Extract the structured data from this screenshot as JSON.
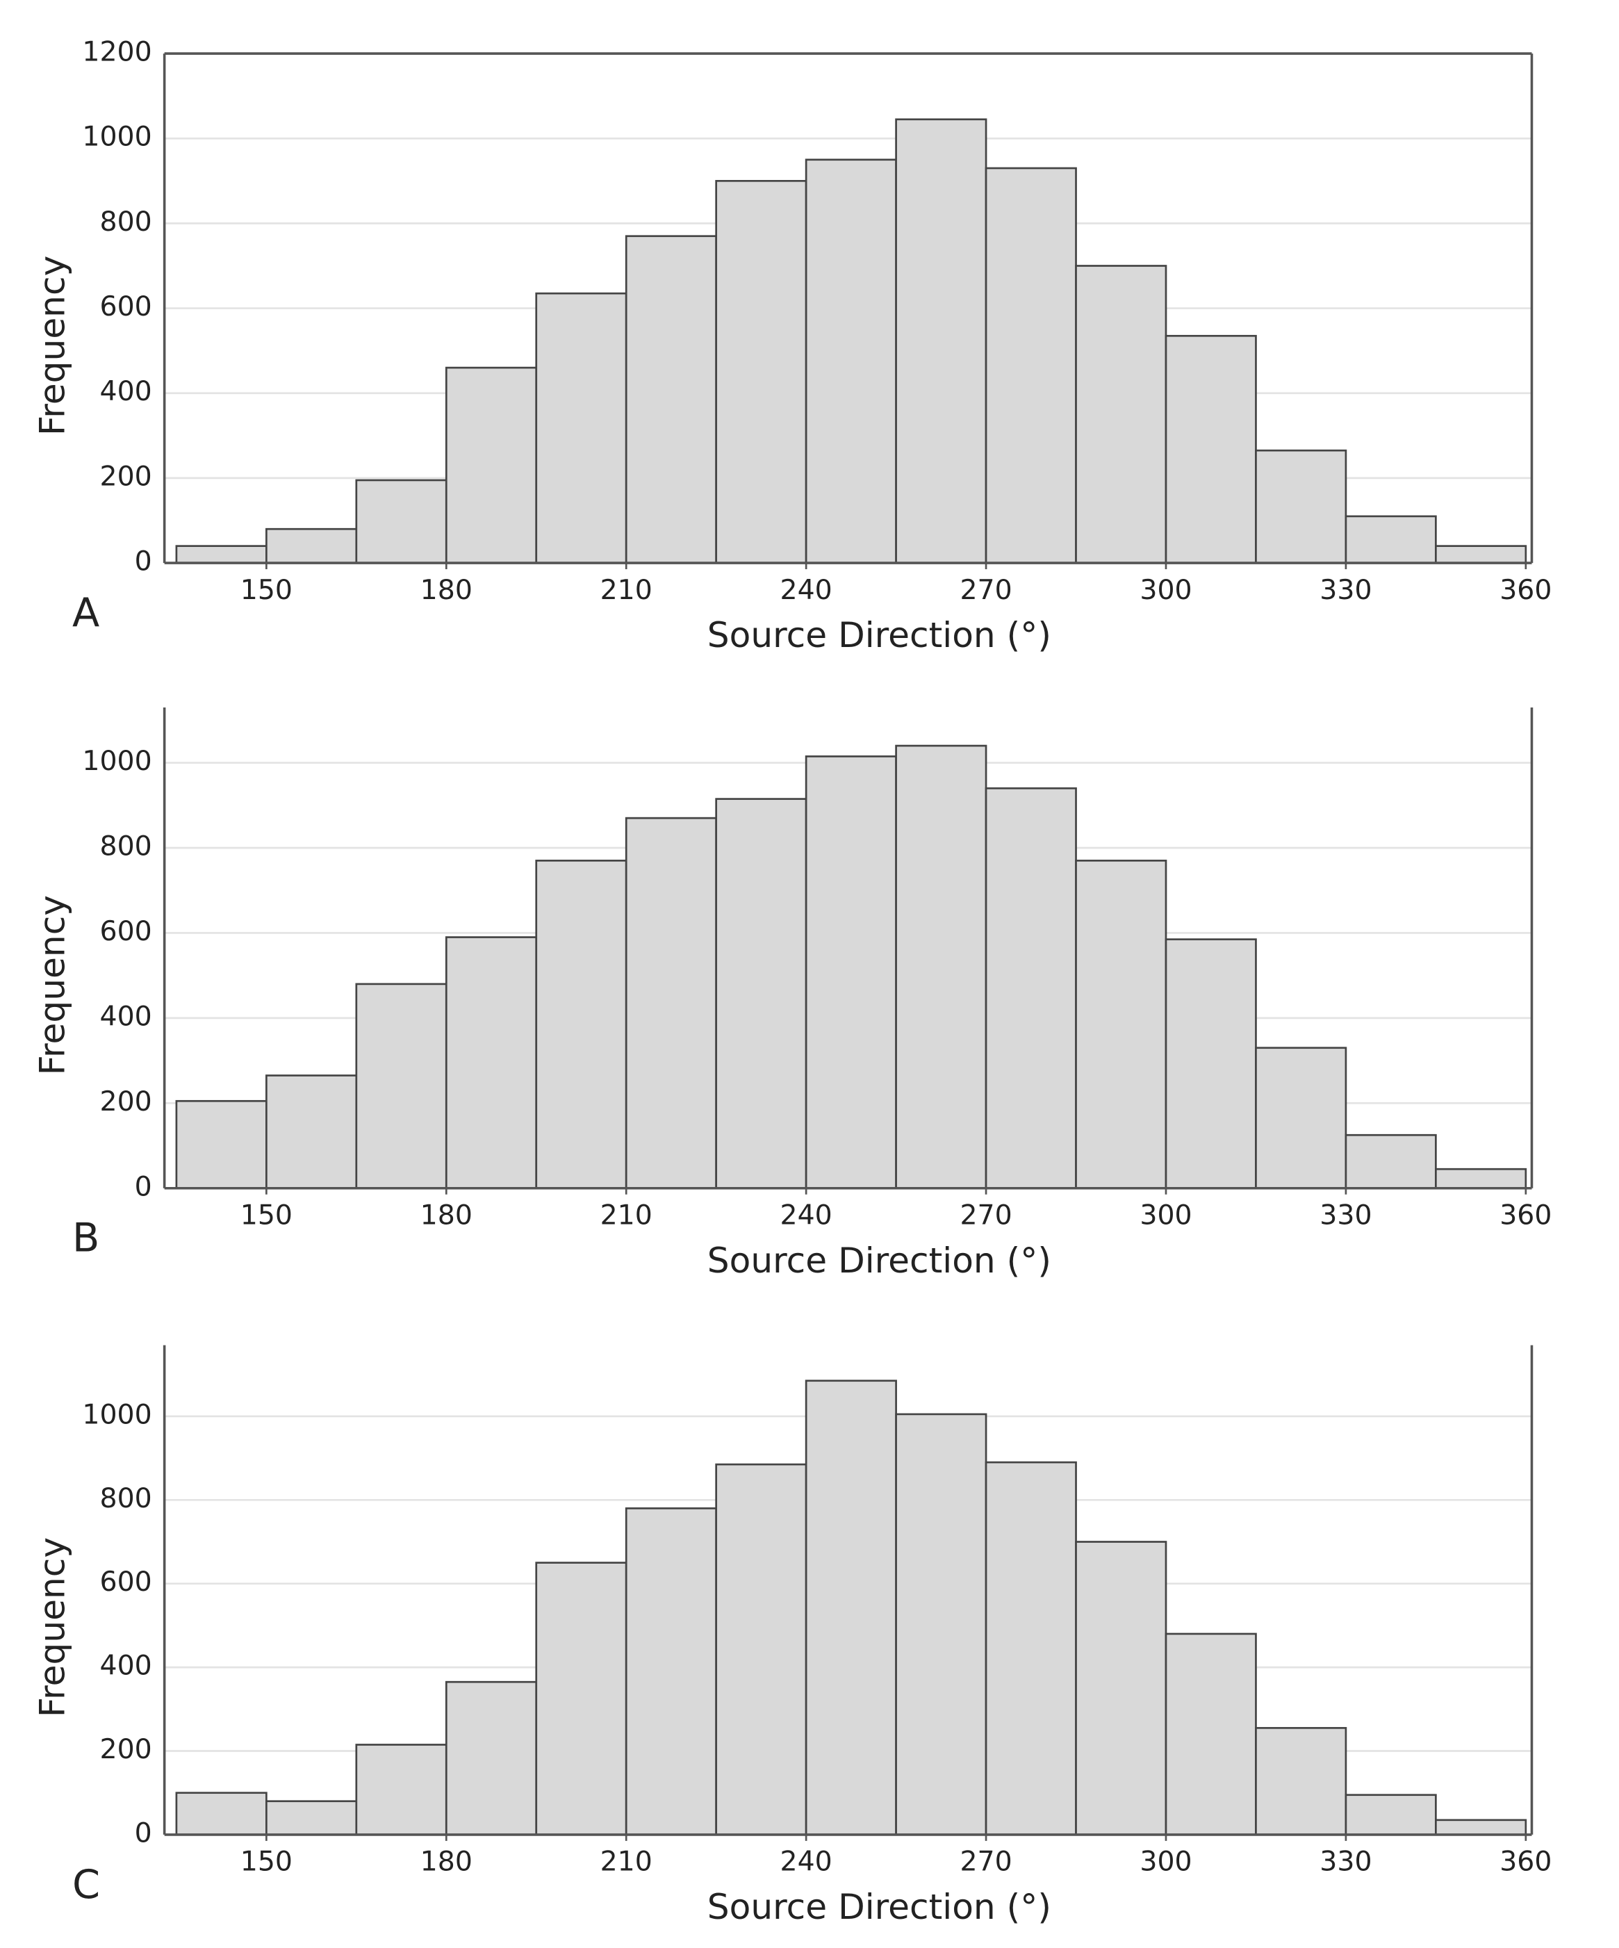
{
  "chart_data": [
    {
      "type": "histogram",
      "label": "A",
      "xlabel": "Source Direction (°)",
      "ylabel": "Frequency",
      "bins": [
        135,
        150,
        165,
        180,
        195,
        210,
        225,
        240,
        255,
        270,
        285,
        300,
        315,
        330,
        345,
        360
      ],
      "values": [
        40,
        80,
        195,
        460,
        635,
        770,
        900,
        950,
        1045,
        930,
        700,
        535,
        265,
        110,
        40
      ],
      "color": "#d9d9d9",
      "xlim": [
        133,
        361
      ],
      "ylim": [
        0,
        1200
      ],
      "xticks": [
        150,
        180,
        210,
        240,
        270,
        300,
        330,
        360
      ],
      "yticks": [
        0,
        200,
        400,
        600,
        800,
        1000,
        1200
      ],
      "grid": true,
      "frame": "box"
    },
    {
      "type": "histogram",
      "label": "B",
      "xlabel": "Source Direction (°)",
      "ylabel": "Frequency",
      "bins": [
        135,
        150,
        165,
        180,
        195,
        210,
        225,
        240,
        255,
        270,
        285,
        300,
        315,
        330,
        345,
        360
      ],
      "values": [
        205,
        265,
        480,
        590,
        770,
        870,
        915,
        1015,
        1040,
        940,
        770,
        585,
        330,
        125,
        45
      ],
      "color": "#d9d9d9",
      "xlim": [
        133,
        361
      ],
      "ylim": [
        0,
        1130
      ],
      "xticks": [
        150,
        180,
        210,
        240,
        270,
        300,
        330,
        360
      ],
      "yticks": [
        0,
        200,
        400,
        600,
        800,
        1000
      ],
      "grid": true,
      "frame": "sides"
    },
    {
      "type": "histogram",
      "label": "C",
      "xlabel": "Source Direction (°)",
      "ylabel": "Frequency",
      "bins": [
        135,
        150,
        165,
        180,
        195,
        210,
        225,
        240,
        255,
        270,
        285,
        300,
        315,
        330,
        345,
        360
      ],
      "values": [
        100,
        80,
        215,
        365,
        650,
        780,
        885,
        1085,
        1005,
        890,
        700,
        480,
        255,
        95,
        35
      ],
      "color": "#d9d9d9",
      "xlim": [
        133,
        361
      ],
      "ylim": [
        0,
        1170
      ],
      "xticks": [
        150,
        180,
        210,
        240,
        270,
        300,
        330,
        360
      ],
      "yticks": [
        0,
        200,
        400,
        600,
        800,
        1000
      ],
      "grid": true,
      "frame": "sides"
    }
  ]
}
